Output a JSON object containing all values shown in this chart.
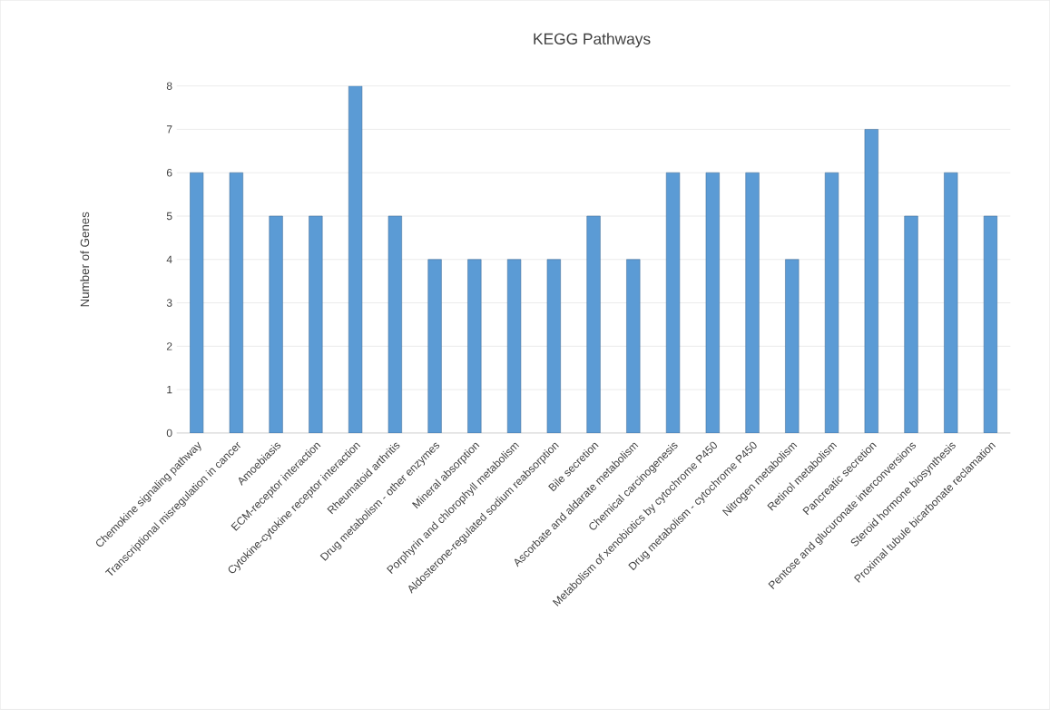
{
  "chart_data": {
    "type": "bar",
    "title": "KEGG Pathways",
    "ylabel": "Number  of Genes",
    "categories": [
      "Chemokine signaling pathway",
      "Transcriptional misregulation in cancer",
      "Amoebiasis",
      "ECM-receptor interaction",
      "Cytokine-cytokine receptor interaction",
      "Rheumatoid arthritis",
      "Drug metabolism - other enzymes",
      "Mineral absorption",
      "Porphyrin and chlorophyll metabolism",
      "Aldosterone-regulated sodium reabsorption",
      "Bile secretion",
      "Ascorbate and aldarate metabolism",
      "Chemical carcinogenesis",
      "Metabolism of xenobiotics by cytochrome P450",
      "Drug metabolism - cytochrome P450",
      "Nitrogen metabolism",
      "Retinol metabolism",
      "Pancreatic secretion",
      "Pentose and glucuronate interconversions",
      "Steroid hormone biosynthesis",
      "Proximal tubule bicarbonate reclamation"
    ],
    "values": [
      6,
      6,
      5,
      5,
      8,
      5,
      4,
      4,
      4,
      4,
      5,
      4,
      6,
      6,
      6,
      4,
      6,
      7,
      5,
      6,
      5
    ],
    "color": "#5b9bd5",
    "ylim": [
      0,
      8
    ],
    "yticks": [
      0,
      1,
      2,
      3,
      4,
      5,
      6,
      7,
      8
    ],
    "grid": "y"
  }
}
